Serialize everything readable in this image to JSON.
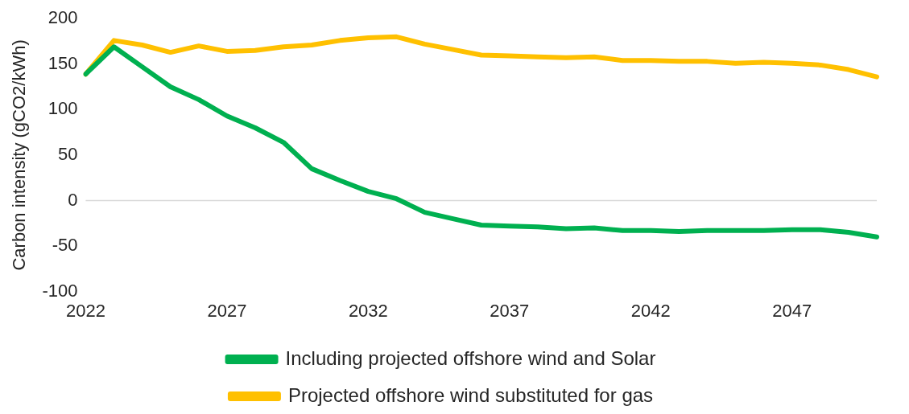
{
  "chart_data": {
    "type": "line",
    "ylabel": "Carbon intensity (gCO2/kWh)",
    "categories": [
      "2022",
      null,
      null,
      null,
      null,
      "2027",
      null,
      null,
      null,
      null,
      "2032",
      null,
      null,
      null,
      null,
      "2037",
      null,
      null,
      null,
      null,
      "2042",
      null,
      null,
      null,
      null,
      "2047",
      null,
      null,
      null
    ],
    "series": [
      {
        "name": "Including projected offshore wind and Solar",
        "color": "#00b050",
        "values": [
          139,
          169,
          147,
          125,
          111,
          93,
          80,
          64,
          35,
          22,
          10,
          2,
          -13,
          -20,
          -27,
          -28,
          -29,
          -31,
          -30,
          -33,
          -33,
          -34,
          -33,
          -33,
          -33,
          -32,
          -32,
          -35,
          -40
        ]
      },
      {
        "name": "Projected offshore wind substituted for gas",
        "color": "#ffc000",
        "values": [
          139,
          176,
          171,
          163,
          170,
          164,
          165,
          169,
          171,
          176,
          179,
          180,
          172,
          166,
          160,
          159,
          158,
          157,
          158,
          154,
          154,
          153,
          153,
          151,
          152,
          151,
          149,
          144,
          136
        ]
      }
    ],
    "ylim": [
      -100,
      200
    ],
    "yticks": [
      -100,
      -50,
      0,
      50,
      100,
      150,
      200
    ],
    "ref_lines": [
      {
        "axis": "y",
        "value": 0,
        "color": "#d9d9d9"
      }
    ],
    "grid": false,
    "legend": "bottom",
    "marker": "none",
    "line_style": "solid"
  }
}
